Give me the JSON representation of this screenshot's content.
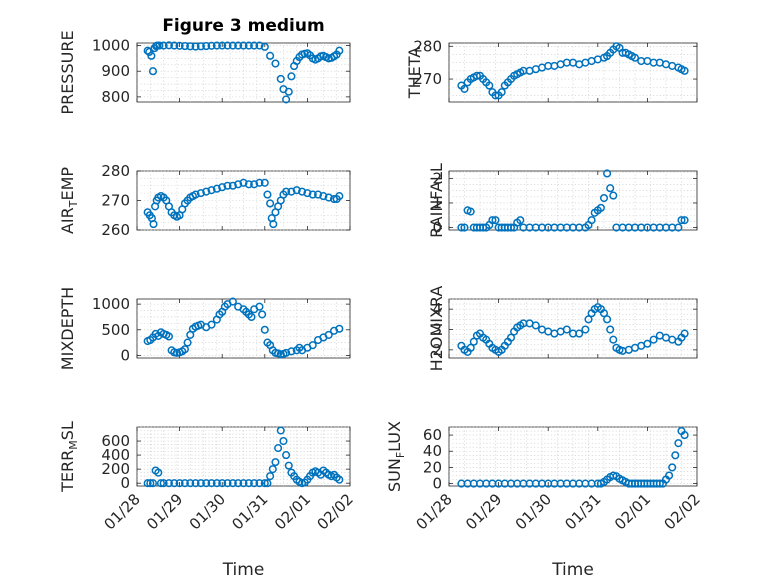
{
  "chart_data": [
    {
      "type": "scatter",
      "title": "Figure 3 medium",
      "ylabel": {
        "text": "PRESSURE"
      },
      "ylim": [
        780,
        1010
      ],
      "yticks": [
        800,
        900,
        1000
      ],
      "xlim": [
        0,
        4
      ],
      "xticks": [],
      "grid": true,
      "minor_grid": true,
      "color": "#0072BD",
      "x": [
        0.2,
        0.23,
        0.27,
        0.3,
        0.33,
        0.36,
        0.38,
        0.42,
        0.5,
        0.6,
        0.7,
        0.8,
        0.9,
        1.0,
        1.1,
        1.2,
        1.3,
        1.4,
        1.5,
        1.6,
        1.7,
        1.8,
        1.9,
        2.0,
        2.1,
        2.2,
        2.3,
        2.4,
        2.5,
        2.6,
        2.7,
        2.75,
        2.8,
        2.85,
        2.9,
        2.95,
        3.0,
        3.05,
        3.1,
        3.15,
        3.2,
        3.25,
        3.3,
        3.35,
        3.4,
        3.45,
        3.5,
        3.55,
        3.6,
        3.65,
        3.7,
        3.75,
        3.8
      ],
      "y": [
        980,
        975,
        960,
        900,
        990,
        998,
        1000,
        1000,
        1000,
        1001,
        1000,
        999,
        998,
        997,
        996,
        997,
        998,
        999,
        1000,
        1000,
        1000,
        1000,
        1000,
        1000,
        1000,
        1000,
        1000,
        995,
        960,
        930,
        870,
        830,
        790,
        820,
        880,
        920,
        940,
        955,
        965,
        968,
        970,
        962,
        950,
        945,
        950,
        958,
        960,
        955,
        950,
        952,
        958,
        965,
        980
      ]
    },
    {
      "type": "scatter",
      "ylabel": {
        "text": "THETA"
      },
      "ylim": [
        263,
        281
      ],
      "yticks": [
        270,
        280
      ],
      "xlim": [
        0,
        4
      ],
      "xticks": [],
      "grid": true,
      "minor_grid": true,
      "color": "#0072BD",
      "x": [
        0.2,
        0.25,
        0.3,
        0.35,
        0.4,
        0.45,
        0.5,
        0.55,
        0.6,
        0.65,
        0.7,
        0.75,
        0.8,
        0.85,
        0.9,
        0.95,
        1.0,
        1.05,
        1.1,
        1.15,
        1.2,
        1.3,
        1.4,
        1.5,
        1.6,
        1.7,
        1.8,
        1.9,
        2.0,
        2.1,
        2.2,
        2.3,
        2.4,
        2.5,
        2.55,
        2.6,
        2.65,
        2.7,
        2.75,
        2.8,
        2.85,
        2.9,
        2.95,
        3.0,
        3.1,
        3.2,
        3.3,
        3.4,
        3.5,
        3.6,
        3.7,
        3.75,
        3.8
      ],
      "y": [
        268,
        267,
        269,
        270,
        270.5,
        271,
        271,
        270,
        269,
        268,
        266,
        265,
        265,
        266,
        268,
        269,
        270,
        271,
        271.5,
        272,
        272.5,
        272.5,
        273,
        273.5,
        274,
        274,
        274.5,
        275,
        275,
        274.5,
        275,
        275.5,
        276,
        276.5,
        277,
        278,
        279,
        280,
        279.5,
        278,
        278,
        277.5,
        277,
        276.5,
        275.5,
        275.5,
        275,
        275,
        274.5,
        274,
        273.5,
        273,
        272.5
      ]
    },
    {
      "type": "scatter",
      "ylabel": {
        "text": "AIR",
        "sub": "T",
        "rest": "EMP"
      },
      "ylim": [
        260,
        280
      ],
      "yticks": [
        260,
        270,
        280
      ],
      "xlim": [
        0,
        4
      ],
      "xticks": [],
      "grid": true,
      "minor_grid": true,
      "color": "#0072BD",
      "x": [
        0.2,
        0.24,
        0.28,
        0.31,
        0.34,
        0.37,
        0.4,
        0.45,
        0.5,
        0.55,
        0.6,
        0.65,
        0.7,
        0.75,
        0.8,
        0.85,
        0.9,
        0.95,
        1.0,
        1.05,
        1.1,
        1.2,
        1.3,
        1.4,
        1.5,
        1.6,
        1.7,
        1.8,
        1.9,
        2.0,
        2.1,
        2.2,
        2.3,
        2.4,
        2.45,
        2.5,
        2.53,
        2.56,
        2.6,
        2.65,
        2.7,
        2.75,
        2.8,
        2.9,
        3.0,
        3.1,
        3.2,
        3.3,
        3.4,
        3.5,
        3.6,
        3.7,
        3.75,
        3.8
      ],
      "y": [
        266,
        265,
        264,
        262,
        268,
        270,
        271,
        271.5,
        271,
        270,
        268,
        266,
        265,
        264.5,
        265,
        267,
        269,
        270,
        271,
        271.5,
        272,
        272.5,
        273,
        273.5,
        274,
        274.5,
        275,
        275,
        275.5,
        276,
        275.5,
        275.5,
        276,
        276,
        272,
        269,
        264,
        262,
        266,
        268,
        270,
        272,
        273,
        273,
        273.5,
        273,
        272.5,
        272,
        272,
        271.5,
        271,
        270.5,
        270.5,
        271.5
      ]
    },
    {
      "type": "scatter",
      "ylabel": {
        "text": "RAINFALL"
      },
      "ylim": [
        -0.1,
        2.3
      ],
      "yticks": [
        0,
        1,
        2
      ],
      "xlim": [
        0,
        4
      ],
      "xticks": [],
      "grid": true,
      "minor_grid": true,
      "color": "#0072BD",
      "x": [
        0.2,
        0.25,
        0.3,
        0.35,
        0.4,
        0.45,
        0.5,
        0.55,
        0.6,
        0.65,
        0.7,
        0.75,
        0.8,
        0.85,
        0.9,
        0.95,
        1.0,
        1.05,
        1.1,
        1.15,
        1.2,
        1.3,
        1.4,
        1.5,
        1.6,
        1.7,
        1.8,
        1.9,
        2.0,
        2.1,
        2.2,
        2.25,
        2.3,
        2.35,
        2.4,
        2.45,
        2.5,
        2.55,
        2.6,
        2.65,
        2.7,
        2.8,
        2.9,
        3.0,
        3.1,
        3.2,
        3.3,
        3.4,
        3.5,
        3.6,
        3.7,
        3.75,
        3.8
      ],
      "y": [
        0,
        0,
        0.7,
        0.65,
        0,
        0,
        0,
        0,
        0,
        0.1,
        0.3,
        0.3,
        0,
        0,
        0,
        0,
        0,
        0,
        0.2,
        0.3,
        0,
        0,
        0,
        0,
        0,
        0,
        0,
        0,
        0,
        0,
        0,
        0.1,
        0.3,
        0.6,
        0.7,
        0.8,
        1.2,
        2.2,
        1.6,
        1.3,
        0,
        0,
        0,
        0,
        0,
        0,
        0,
        0,
        0,
        0,
        0,
        0.3,
        0.3
      ]
    },
    {
      "type": "scatter",
      "ylabel": {
        "text": "MIXDEPTH"
      },
      "ylim": [
        -50,
        1100
      ],
      "yticks": [
        0,
        500,
        1000
      ],
      "xlim": [
        0,
        4
      ],
      "xticks": [],
      "grid": true,
      "minor_grid": true,
      "color": "#0072BD",
      "x": [
        0.2,
        0.25,
        0.3,
        0.35,
        0.4,
        0.45,
        0.5,
        0.55,
        0.6,
        0.65,
        0.7,
        0.75,
        0.8,
        0.85,
        0.9,
        0.95,
        1.0,
        1.05,
        1.1,
        1.15,
        1.2,
        1.3,
        1.4,
        1.5,
        1.55,
        1.6,
        1.65,
        1.7,
        1.8,
        1.9,
        2.0,
        2.05,
        2.1,
        2.15,
        2.2,
        2.3,
        2.35,
        2.4,
        2.45,
        2.5,
        2.55,
        2.6,
        2.65,
        2.7,
        2.75,
        2.8,
        2.9,
        3.0,
        3.05,
        3.1,
        3.2,
        3.3,
        3.4,
        3.5,
        3.6,
        3.7,
        3.8
      ],
      "y": [
        280,
        300,
        350,
        420,
        380,
        450,
        420,
        400,
        370,
        100,
        60,
        50,
        60,
        80,
        120,
        250,
        400,
        520,
        560,
        580,
        600,
        550,
        600,
        700,
        800,
        850,
        950,
        1000,
        1050,
        950,
        900,
        850,
        800,
        750,
        900,
        950,
        800,
        500,
        250,
        200,
        100,
        50,
        40,
        20,
        30,
        50,
        80,
        100,
        150,
        100,
        150,
        200,
        300,
        350,
        400,
        480,
        520
      ]
    },
    {
      "type": "scatter",
      "ylabel": {
        "text": "H2OMIXRA"
      },
      "ylim": [
        1.6,
        4.5
      ],
      "yticks": [
        2,
        3,
        4
      ],
      "xlim": [
        0,
        4
      ],
      "xticks": [],
      "grid": true,
      "minor_grid": true,
      "color": "#0072BD",
      "x": [
        0.2,
        0.25,
        0.3,
        0.35,
        0.4,
        0.45,
        0.5,
        0.55,
        0.6,
        0.65,
        0.7,
        0.75,
        0.8,
        0.85,
        0.9,
        0.95,
        1.0,
        1.05,
        1.1,
        1.15,
        1.2,
        1.3,
        1.4,
        1.5,
        1.6,
        1.7,
        1.8,
        1.9,
        2.0,
        2.1,
        2.2,
        2.25,
        2.3,
        2.35,
        2.4,
        2.45,
        2.5,
        2.55,
        2.6,
        2.65,
        2.7,
        2.75,
        2.8,
        2.9,
        3.0,
        3.1,
        3.2,
        3.3,
        3.4,
        3.5,
        3.6,
        3.7,
        3.75,
        3.8
      ],
      "y": [
        2.2,
        2.0,
        1.9,
        2.1,
        2.4,
        2.7,
        2.8,
        2.6,
        2.5,
        2.3,
        2.1,
        2.0,
        1.9,
        2.0,
        2.2,
        2.4,
        2.6,
        2.9,
        3.1,
        3.2,
        3.3,
        3.3,
        3.2,
        3.0,
        2.9,
        2.8,
        2.9,
        3.0,
        2.8,
        2.8,
        3.0,
        3.5,
        3.8,
        4.0,
        4.1,
        4.0,
        3.8,
        3.5,
        3.0,
        2.5,
        2.1,
        2.0,
        1.95,
        2.0,
        2.1,
        2.2,
        2.3,
        2.5,
        2.7,
        2.6,
        2.5,
        2.4,
        2.6,
        2.8
      ]
    },
    {
      "type": "scatter",
      "ylabel": {
        "text": "TERR",
        "sub": "M",
        "rest": "SL"
      },
      "ylim": [
        -40,
        800
      ],
      "yticks": [
        0,
        200,
        400,
        600
      ],
      "xlim": [
        0,
        4
      ],
      "xticks": [
        "01/28",
        "01/29",
        "01/30",
        "01/31",
        "02/01",
        "02/02"
      ],
      "xlabel": "Time",
      "grid": true,
      "minor_grid": true,
      "color": "#0072BD",
      "x": [
        0.2,
        0.25,
        0.3,
        0.35,
        0.4,
        0.45,
        0.5,
        0.6,
        0.7,
        0.8,
        0.9,
        1.0,
        1.1,
        1.2,
        1.3,
        1.4,
        1.5,
        1.6,
        1.7,
        1.8,
        1.9,
        2.0,
        2.1,
        2.2,
        2.3,
        2.4,
        2.45,
        2.5,
        2.55,
        2.6,
        2.65,
        2.7,
        2.75,
        2.8,
        2.85,
        2.9,
        2.95,
        3.0,
        3.05,
        3.1,
        3.15,
        3.2,
        3.25,
        3.3,
        3.35,
        3.4,
        3.45,
        3.5,
        3.55,
        3.6,
        3.65,
        3.7,
        3.75,
        3.8
      ],
      "y": [
        0,
        0,
        0,
        180,
        150,
        0,
        0,
        0,
        0,
        0,
        0,
        0,
        0,
        0,
        0,
        0,
        0,
        0,
        0,
        0,
        0,
        0,
        0,
        0,
        0,
        0,
        0,
        100,
        200,
        300,
        500,
        750,
        600,
        400,
        250,
        150,
        100,
        50,
        20,
        0,
        10,
        50,
        100,
        150,
        170,
        150,
        120,
        180,
        150,
        120,
        100,
        120,
        80,
        50
      ]
    },
    {
      "type": "scatter",
      "ylabel": {
        "text": "SUN",
        "sub": "F",
        "rest": "LUX"
      },
      "ylim": [
        -3,
        70
      ],
      "yticks": [
        0,
        20,
        40,
        60
      ],
      "xlim": [
        0,
        4
      ],
      "xticks": [
        "01/28",
        "01/29",
        "01/30",
        "01/31",
        "02/01",
        "02/02"
      ],
      "xlabel": "Time",
      "grid": true,
      "minor_grid": true,
      "color": "#0072BD",
      "x": [
        0.2,
        0.3,
        0.4,
        0.5,
        0.6,
        0.7,
        0.8,
        0.9,
        1.0,
        1.1,
        1.2,
        1.3,
        1.4,
        1.5,
        1.6,
        1.7,
        1.8,
        1.9,
        2.0,
        2.1,
        2.2,
        2.3,
        2.4,
        2.45,
        2.5,
        2.55,
        2.6,
        2.65,
        2.7,
        2.75,
        2.8,
        2.85,
        2.9,
        2.95,
        3.0,
        3.05,
        3.1,
        3.15,
        3.2,
        3.25,
        3.3,
        3.35,
        3.4,
        3.45,
        3.5,
        3.55,
        3.6,
        3.65,
        3.7,
        3.75,
        3.8
      ],
      "y": [
        0,
        0,
        0,
        0,
        0,
        0,
        0,
        0,
        0,
        0,
        0,
        0,
        0,
        0,
        0,
        0,
        0,
        0,
        0,
        0,
        0,
        0,
        0,
        0,
        2,
        5,
        8,
        10,
        9,
        6,
        4,
        2,
        0,
        0,
        0,
        0,
        0,
        0,
        0,
        0,
        0,
        0,
        0,
        0,
        5,
        10,
        20,
        35,
        50,
        65,
        60
      ]
    }
  ]
}
